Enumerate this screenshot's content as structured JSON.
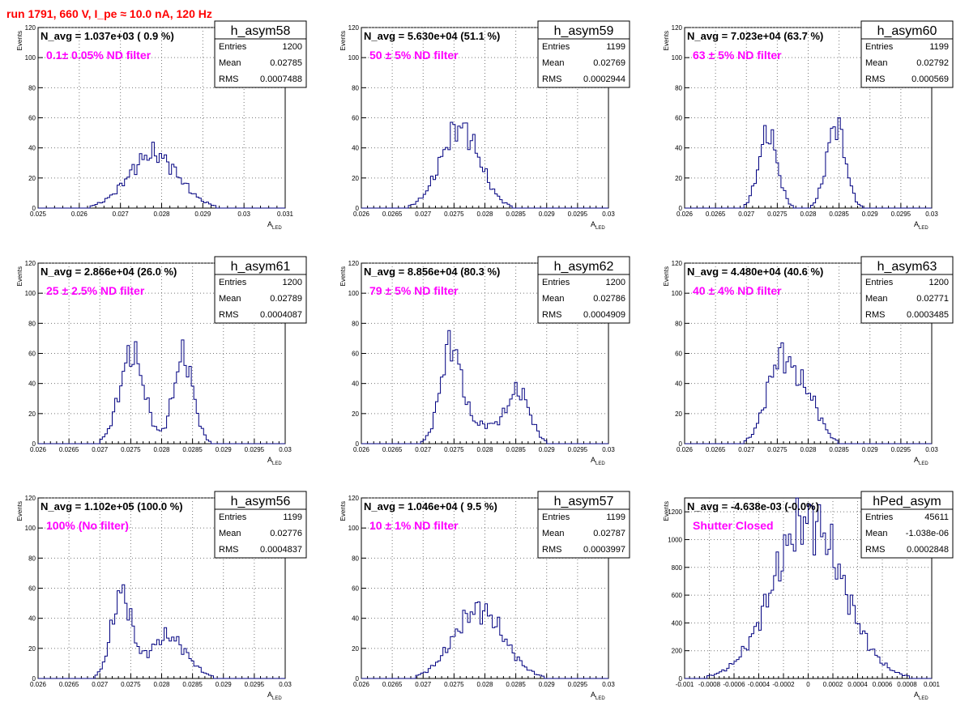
{
  "page": {
    "title": "run 1791,   660 V, I_pe ≈ 10.0 nA, 120 Hz",
    "ylabel": "Events",
    "xlabel_main": "A",
    "xlabel_sub": "LED",
    "stat_labels": [
      "Entries",
      "Mean",
      "RMS"
    ]
  },
  "chart_data": [
    {
      "type": "histogram",
      "name": "h_asym58",
      "nav": "N_avg = 1.037e+03 ( 0.9 %)",
      "filter": "0.1± 0.05% ND filter",
      "stats": {
        "entries": "1200",
        "mean": "0.02785",
        "rms": "0.0007488"
      },
      "xlim": [
        0.025,
        0.031
      ],
      "ylim": [
        0,
        120
      ],
      "xticks": [
        0.025,
        0.026,
        0.027,
        0.028,
        0.029,
        0.03,
        0.031
      ],
      "xtick_labels": [
        "0.025",
        "0.026",
        "0.027",
        "0.028",
        "0.029",
        "0.03",
        "0.031"
      ],
      "yticks": [
        0,
        20,
        40,
        60,
        80,
        100,
        120
      ],
      "peaks": [
        {
          "mu": 0.0278,
          "sigma": 0.0006,
          "amp": 36
        }
      ]
    },
    {
      "type": "histogram",
      "name": "h_asym59",
      "nav": "N_avg = 5.630e+04 (51.1 %)",
      "filter": "50 ± 5% ND filter",
      "stats": {
        "entries": "1199",
        "mean": "0.02769",
        "rms": "0.0002944"
      },
      "xlim": [
        0.026,
        0.03
      ],
      "ylim": [
        0,
        120
      ],
      "xticks": [
        0.026,
        0.0265,
        0.027,
        0.0275,
        0.028,
        0.0285,
        0.029,
        0.0295,
        0.03
      ],
      "xtick_labels": [
        "0.026",
        "0.0265",
        "0.027",
        "0.0275",
        "0.028",
        "0.0285",
        "0.029",
        "0.0295",
        "0.03"
      ],
      "yticks": [
        0,
        20,
        40,
        60,
        80,
        100,
        120
      ],
      "peaks": [
        {
          "mu": 0.0276,
          "sigma": 0.00031,
          "amp": 54
        }
      ]
    },
    {
      "type": "histogram",
      "name": "h_asym60",
      "nav": "N_avg = 7.023e+04 (63.7 %)",
      "filter": "63 ± 5% ND filter",
      "stats": {
        "entries": "1199",
        "mean": "0.02792",
        "rms": "0.000569"
      },
      "xlim": [
        0.026,
        0.03
      ],
      "ylim": [
        0,
        120
      ],
      "xticks": [
        0.026,
        0.0265,
        0.027,
        0.0275,
        0.028,
        0.0285,
        0.029,
        0.0295,
        0.03
      ],
      "xtick_labels": [
        "0.026",
        "0.0265",
        "0.027",
        "0.0275",
        "0.028",
        "0.0285",
        "0.029",
        "0.0295",
        "0.03"
      ],
      "yticks": [
        0,
        20,
        40,
        60,
        80,
        100,
        120
      ],
      "peaks": [
        {
          "mu": 0.02735,
          "sigma": 0.00015,
          "amp": 50
        },
        {
          "mu": 0.02845,
          "sigma": 0.00015,
          "amp": 56
        }
      ]
    },
    {
      "type": "histogram",
      "name": "h_asym61",
      "nav": "N_avg = 2.866e+04 (26.0 %)",
      "filter": "25 ± 2.5% ND filter",
      "stats": {
        "entries": "1200",
        "mean": "0.02789",
        "rms": "0.0004087"
      },
      "xlim": [
        0.026,
        0.03
      ],
      "ylim": [
        0,
        120
      ],
      "xticks": [
        0.026,
        0.0265,
        0.027,
        0.0275,
        0.028,
        0.0285,
        0.029,
        0.0295,
        0.03
      ],
      "xtick_labels": [
        "0.026",
        "0.0265",
        "0.027",
        "0.0275",
        "0.028",
        "0.0285",
        "0.029",
        "0.0295",
        "0.03"
      ],
      "yticks": [
        0,
        20,
        40,
        60,
        80,
        100,
        120
      ],
      "peaks": [
        {
          "mu": 0.02752,
          "sigma": 0.0002,
          "amp": 60
        },
        {
          "mu": 0.02835,
          "sigma": 0.00016,
          "amp": 58
        }
      ]
    },
    {
      "type": "histogram",
      "name": "h_asym62",
      "nav": "N_avg = 8.856e+04 (80.3 %)",
      "filter": "79 ± 5% ND filter",
      "stats": {
        "entries": "1200",
        "mean": "0.02786",
        "rms": "0.0004909"
      },
      "xlim": [
        0.026,
        0.03
      ],
      "ylim": [
        0,
        120
      ],
      "xticks": [
        0.026,
        0.0265,
        0.027,
        0.0275,
        0.028,
        0.0285,
        0.029,
        0.0295,
        0.03
      ],
      "xtick_labels": [
        "0.026",
        "0.0265",
        "0.027",
        "0.0275",
        "0.028",
        "0.0285",
        "0.029",
        "0.0295",
        "0.03"
      ],
      "yticks": [
        0,
        20,
        40,
        60,
        80,
        100,
        120
      ],
      "peaks": [
        {
          "mu": 0.02745,
          "sigma": 0.00017,
          "amp": 64
        },
        {
          "mu": 0.02855,
          "sigma": 0.00018,
          "amp": 33
        },
        {
          "mu": 0.028,
          "sigma": 0.0003,
          "amp": 12
        }
      ]
    },
    {
      "type": "histogram",
      "name": "h_asym63",
      "nav": "N_avg = 4.480e+04 (40.6 %)",
      "filter": "40 ± 4% ND filter",
      "stats": {
        "entries": "1200",
        "mean": "0.02771",
        "rms": "0.0003485"
      },
      "xlim": [
        0.026,
        0.03
      ],
      "ylim": [
        0,
        120
      ],
      "xticks": [
        0.026,
        0.0265,
        0.027,
        0.0275,
        0.028,
        0.0285,
        0.029,
        0.0295,
        0.03
      ],
      "xtick_labels": [
        "0.026",
        "0.0265",
        "0.027",
        "0.0275",
        "0.028",
        "0.0285",
        "0.029",
        "0.0295",
        "0.03"
      ],
      "yticks": [
        0,
        20,
        40,
        60,
        80,
        100,
        120
      ],
      "peaks": [
        {
          "mu": 0.02755,
          "sigma": 0.00022,
          "amp": 56
        },
        {
          "mu": 0.028,
          "sigma": 0.0002,
          "amp": 28
        }
      ]
    },
    {
      "type": "histogram",
      "name": "h_asym56",
      "nav": "N_avg = 1.102e+05 (100.0 %)",
      "filter": "100% (No filter)",
      "stats": {
        "entries": "1199",
        "mean": "0.02776",
        "rms": "0.0004837"
      },
      "xlim": [
        0.026,
        0.03
      ],
      "ylim": [
        0,
        120
      ],
      "xticks": [
        0.026,
        0.0265,
        0.027,
        0.0275,
        0.028,
        0.0285,
        0.029,
        0.0295,
        0.03
      ],
      "xtick_labels": [
        "0.026",
        "0.0265",
        "0.027",
        "0.0275",
        "0.028",
        "0.0285",
        "0.029",
        "0.0295",
        "0.03"
      ],
      "yticks": [
        0,
        20,
        40,
        60,
        80,
        100,
        120
      ],
      "peaks": [
        {
          "mu": 0.02735,
          "sigma": 0.00016,
          "amp": 56
        },
        {
          "mu": 0.0281,
          "sigma": 0.0003,
          "amp": 28
        }
      ]
    },
    {
      "type": "histogram",
      "name": "h_asym57",
      "nav": "N_avg = 1.046e+04 ( 9.5 %)",
      "filter": "10 ± 1% ND filter",
      "stats": {
        "entries": "1199",
        "mean": "0.02787",
        "rms": "0.0003997"
      },
      "xlim": [
        0.026,
        0.03
      ],
      "ylim": [
        0,
        120
      ],
      "xticks": [
        0.026,
        0.0265,
        0.027,
        0.0275,
        0.028,
        0.0285,
        0.029,
        0.0295,
        0.03
      ],
      "xtick_labels": [
        "0.026",
        "0.0265",
        "0.027",
        "0.0275",
        "0.028",
        "0.0285",
        "0.029",
        "0.0295",
        "0.03"
      ],
      "yticks": [
        0,
        20,
        40,
        60,
        80,
        100,
        120
      ],
      "peaks": [
        {
          "mu": 0.0279,
          "sigma": 0.0004,
          "amp": 46
        }
      ]
    },
    {
      "type": "histogram",
      "name": "hPed_asym",
      "nav": "N_avg = -4.638e-03 (-0.0%)",
      "filter": "Shutter Closed",
      "stats": {
        "entries": "45611",
        "mean": "-1.038e-06",
        "rms": "0.0002848"
      },
      "xlim": [
        -0.001,
        0.001
      ],
      "ylim": [
        0,
        1300
      ],
      "xticks": [
        -0.001,
        -0.0008,
        -0.0006,
        -0.0004,
        -0.0002,
        0,
        0.0002,
        0.0004,
        0.0006,
        0.0008,
        0.001
      ],
      "xtick_labels": [
        "-0.001",
        "-0.0008",
        "-0.0006",
        "-0.0004",
        "-0.0002",
        "0",
        "0.0002",
        "0.0004",
        "0.0006",
        "0.0008",
        "0.001"
      ],
      "yticks": [
        0,
        200,
        400,
        600,
        800,
        1000,
        1200
      ],
      "peaks": [
        {
          "mu": 0.0,
          "sigma": 0.00028,
          "amp": 1150
        }
      ]
    }
  ]
}
